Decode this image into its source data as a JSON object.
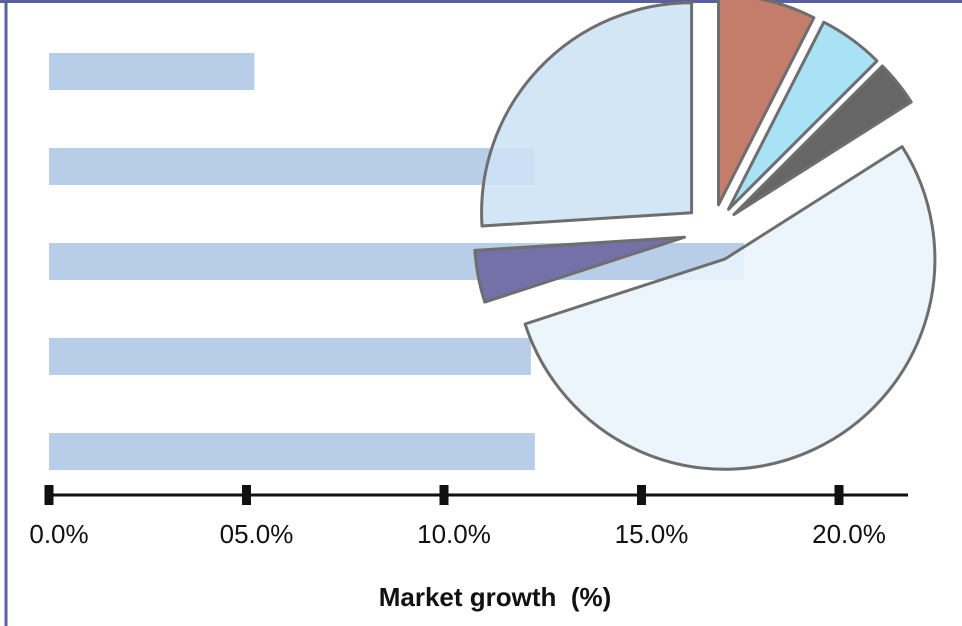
{
  "chart_data": [
    {
      "type": "bar",
      "orientation": "horizontal",
      "bar_color": "#b8cde8",
      "values": [
        5.2,
        12.3,
        17.6,
        12.2,
        12.3
      ],
      "xlim": [
        0,
        20
      ],
      "ticks": [
        0,
        5,
        10,
        15,
        20
      ],
      "tick_labels": [
        "0.0%",
        "05.0%",
        "10.0%",
        "15.0%",
        "20.0%"
      ],
      "xlabel": "Market growth  (%)"
    },
    {
      "type": "pie",
      "exploded": true,
      "slices": [
        {
          "value": 7.5,
          "color": "#c47d6b"
        },
        {
          "value": 5.0,
          "color": "#a9e2f5"
        },
        {
          "value": 3.5,
          "color": "#666666"
        },
        {
          "value": 54.0,
          "color": "#e8f4fa"
        },
        {
          "value": 4.0,
          "color": "#7470a8"
        },
        {
          "value": 26.0,
          "color": "#cde2f5"
        }
      ]
    }
  ],
  "colors": {
    "frame": "#5a5fa0",
    "axis": "#111111",
    "slice_outline": "#6e6e6e"
  }
}
